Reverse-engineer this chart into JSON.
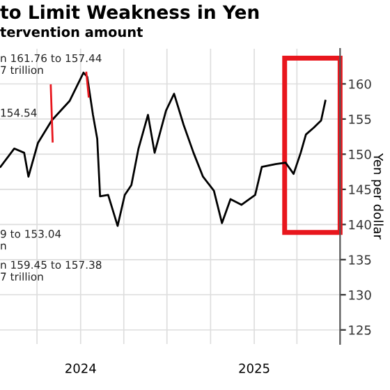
{
  "chart_data": {
    "type": "line",
    "title": "to Limit Weakness in Yen",
    "subtitle": "tervention amount",
    "ylabel": "Yen per dollar",
    "annotations": [
      "n 161.76 to 157.44",
      "7 trillion",
      "154.54",
      "9 to 153.04",
      "n",
      "n 159.45 to 157.38",
      "7 trillion"
    ],
    "series": [
      {
        "color": "#000000",
        "x": [
          "2023-07-16",
          "2023-08-14",
          "2023-09-04",
          "2023-09-13",
          "2023-10-03",
          "2023-11-01",
          "2023-12-09",
          "2024-01-07",
          "2024-01-15",
          "2024-01-27",
          "2024-02-05",
          "2024-02-11",
          "2024-02-28",
          "2024-03-19",
          "2024-04-03",
          "2024-04-17",
          "2024-05-02",
          "2024-05-22",
          "2024-06-05",
          "2024-06-29",
          "2024-07-16",
          "2024-08-05",
          "2024-08-26",
          "2024-09-15",
          "2024-10-08",
          "2024-10-25",
          "2024-11-12",
          "2024-12-05",
          "2025-01-03",
          "2025-01-17",
          "2025-02-15",
          "2025-03-08",
          "2025-03-25",
          "2025-04-09",
          "2025-04-20",
          "2025-05-07",
          "2025-05-22",
          "2025-05-31"
        ],
        "values": [
          148.2,
          150.8,
          150.2,
          146.8,
          151.6,
          154.8,
          157.6,
          161.6,
          161.0,
          155.6,
          152.2,
          144.0,
          144.2,
          139.8,
          144.2,
          145.6,
          150.8,
          155.6,
          150.2,
          156.2,
          158.6,
          154.2,
          150.2,
          146.8,
          144.8,
          140.2,
          143.6,
          142.8,
          144.2,
          148.2,
          148.6,
          148.8,
          147.2,
          150.2,
          152.8,
          153.8,
          154.8,
          157.6
        ]
      },
      {
        "color": "#e8161d",
        "x": [
          "2023-10-30",
          "2023-11-03",
          "2023-12-01",
          "2024-01-13",
          "2024-01-18"
        ],
        "values": [
          159.8,
          151.8,
          null,
          161.6,
          158.2
        ]
      }
    ],
    "xlim": [
      "2023-07-15",
      "2025-07-01"
    ],
    "xticks": [
      {
        "value": "2023-10-01",
        "label": null
      },
      {
        "value": "2024-01-01",
        "label": "2024"
      },
      {
        "value": "2024-04-01",
        "label": null
      },
      {
        "value": "2024-07-01",
        "label": null
      },
      {
        "value": "2024-10-01",
        "label": null
      },
      {
        "value": "2025-01-01",
        "label": "2025"
      },
      {
        "value": "2025-04-01",
        "label": null
      }
    ],
    "ylim": [
      123,
      165
    ],
    "yticks": [
      125,
      130,
      135,
      140,
      145,
      150,
      155,
      160
    ],
    "grid": true
  }
}
